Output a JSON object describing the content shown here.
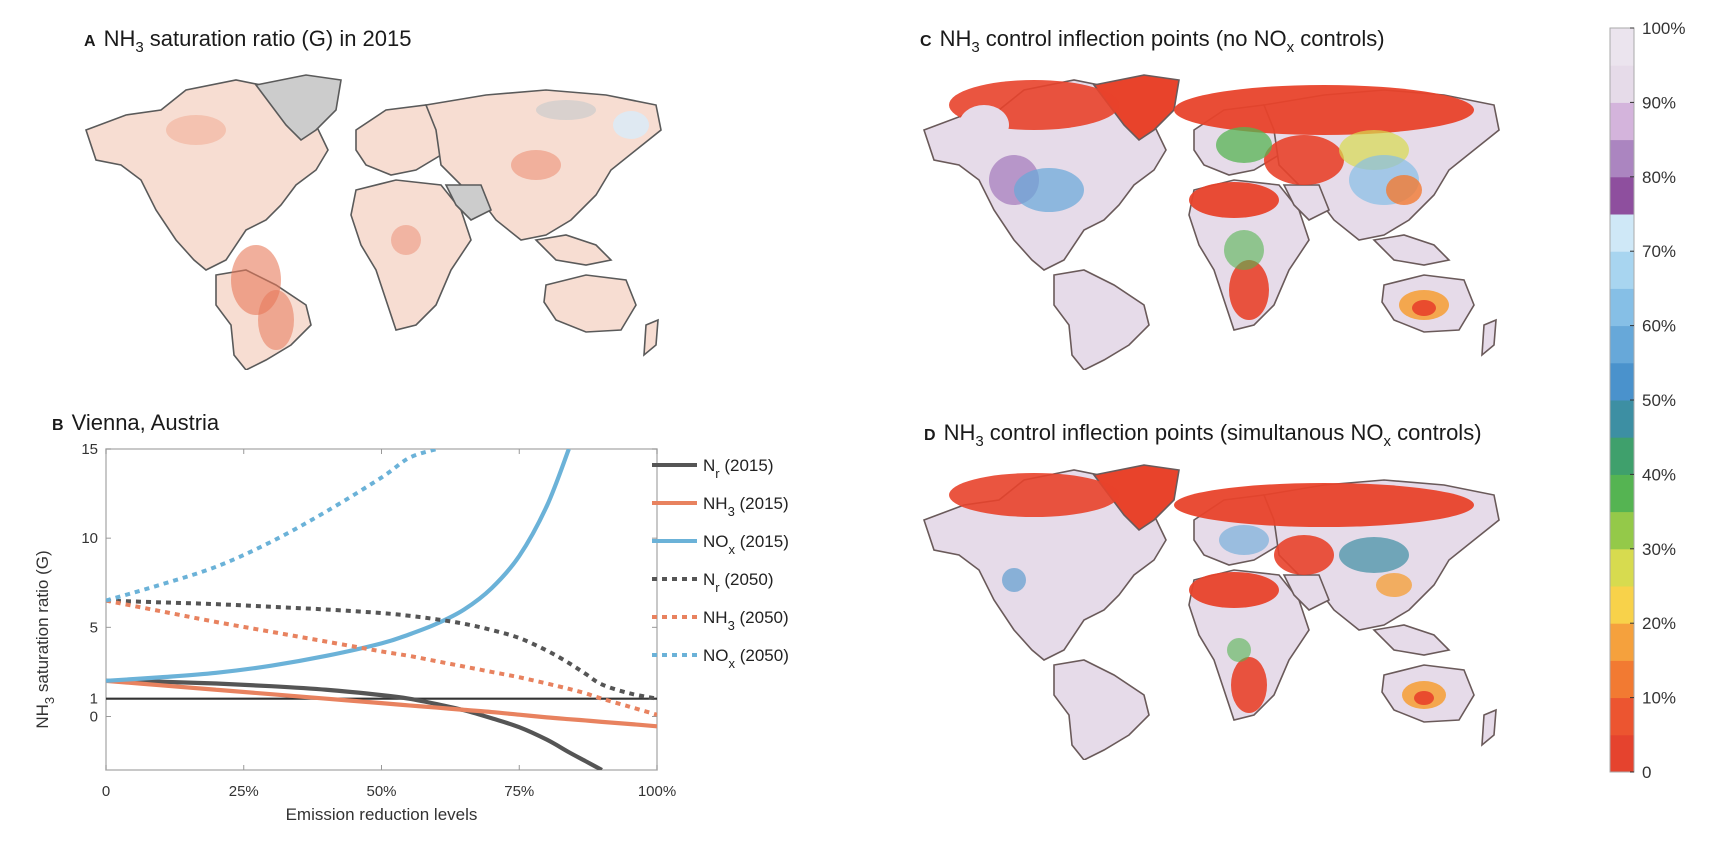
{
  "panels": {
    "a": {
      "letter": "A",
      "title_pre": "NH",
      "title_sub": "3",
      "title_post": " saturation ratio (G) in 2015"
    },
    "b": {
      "letter": "B",
      "title": "Vienna, Austria"
    },
    "c": {
      "letter": "C",
      "title_pre": "NH",
      "title_sub": "3",
      "title_mid": " control inflection points (no NO",
      "title_sub2": "x",
      "title_post": " controls)"
    },
    "d": {
      "letter": "D",
      "title_pre": "NH",
      "title_sub": "3",
      "title_mid": " control inflection points (simultanous NO",
      "title_sub2": "x",
      "title_post": " controls)"
    }
  },
  "maps": {
    "a": {
      "land_color": "#f7ddd2",
      "hot_color": "#e8795a",
      "cold_color": "#cccccc",
      "ice_color": "#dbeaf5",
      "border_color": "#5a5a5a"
    },
    "c": {
      "land_color": "#e6dbe9",
      "hot_color": "#e8432b",
      "border_color": "#6a5a5a"
    },
    "d": {
      "land_color": "#e6dbe9",
      "hot_color": "#e8432b",
      "border_color": "#6a5a5a"
    }
  },
  "colorbar": {
    "ticks": [
      "0",
      "10%",
      "20%",
      "30%",
      "40%",
      "50%",
      "60%",
      "70%",
      "80%",
      "90%",
      "100%"
    ],
    "bands": [
      "#e5432e",
      "#ec5530",
      "#f27a32",
      "#f5a13d",
      "#f8d24a",
      "#d7db4f",
      "#94c949",
      "#55b452",
      "#3fa06c",
      "#3d8fa3",
      "#4a92cc",
      "#67a8d9",
      "#86bfe6",
      "#a8d5f0",
      "#cfe8f7",
      "#8e4f9e",
      "#ab85c0",
      "#d4b4dc",
      "#e6dbe9",
      "#ebe4ee"
    ]
  },
  "chart_data": {
    "type": "line",
    "title": "Vienna, Austria",
    "xlabel": "Emission reduction levels",
    "ylabel_pre": "NH",
    "ylabel_sub": "3",
    "ylabel_post": " saturation ratio (G)",
    "xlim": [
      0,
      100
    ],
    "ylim": [
      -3,
      15
    ],
    "xticks": [
      0,
      25,
      50,
      75,
      100
    ],
    "xtick_labels": [
      "0",
      "25%",
      "50%",
      "75%",
      "100%"
    ],
    "yticks": [
      0,
      1,
      5,
      10,
      15
    ],
    "ytick_labels": [
      "0",
      "1",
      "5",
      "10",
      "15"
    ],
    "reference_line": 1,
    "legend_position": "right",
    "x": [
      0,
      10,
      20,
      30,
      40,
      50,
      55,
      60,
      65,
      70,
      75,
      80,
      84,
      87,
      90,
      95,
      100
    ],
    "series": [
      {
        "name": "Nr (2015)",
        "label_main": "N",
        "label_sub": "r",
        "label_year": " (2015)",
        "color": "#555555",
        "dash": false,
        "values": [
          2.0,
          1.95,
          1.85,
          1.7,
          1.5,
          1.2,
          1.0,
          0.7,
          0.35,
          -0.1,
          -0.6,
          -1.3,
          -2.0,
          -2.5,
          -3.0,
          null,
          null
        ]
      },
      {
        "name": "NH3 (2015)",
        "label_main": "NH",
        "label_sub": "3",
        "label_year": " (2015)",
        "color": "#e8825f",
        "dash": false,
        "values": [
          2.0,
          1.75,
          1.5,
          1.25,
          1.0,
          0.75,
          0.62,
          0.5,
          0.37,
          0.25,
          0.1,
          -0.05,
          -0.15,
          -0.22,
          -0.3,
          -0.42,
          -0.55
        ]
      },
      {
        "name": "NOx (2015)",
        "label_main": "NO",
        "label_sub": "x",
        "label_year": " (2015)",
        "color": "#6bb2d8",
        "dash": false,
        "values": [
          2.0,
          2.2,
          2.45,
          2.85,
          3.4,
          4.1,
          4.6,
          5.2,
          6.0,
          7.2,
          9.0,
          11.8,
          15.0,
          null,
          null,
          null,
          null
        ]
      },
      {
        "name": "Nr (2050)",
        "label_main": "N",
        "label_sub": "r",
        "label_year": " (2050)",
        "color": "#555555",
        "dash": true,
        "values": [
          6.5,
          6.4,
          6.3,
          6.15,
          6.0,
          5.8,
          5.65,
          5.45,
          5.2,
          4.85,
          4.4,
          3.7,
          3.0,
          2.4,
          1.8,
          1.3,
          1.0
        ]
      },
      {
        "name": "NH3 (2050)",
        "label_main": "NH",
        "label_sub": "3",
        "label_year": " (2050)",
        "color": "#e8825f",
        "dash": true,
        "values": [
          6.5,
          5.9,
          5.3,
          4.75,
          4.2,
          3.65,
          3.4,
          3.1,
          2.8,
          2.5,
          2.2,
          1.85,
          1.55,
          1.3,
          1.0,
          0.55,
          0.1
        ]
      },
      {
        "name": "NOx (2050)",
        "label_main": "NO",
        "label_sub": "x",
        "label_year": " (2050)",
        "color": "#6bb2d8",
        "dash": true,
        "values": [
          6.5,
          7.4,
          8.4,
          9.8,
          11.5,
          13.4,
          14.5,
          15.0,
          null,
          null,
          null,
          null,
          null,
          null,
          null,
          null,
          null
        ]
      }
    ]
  }
}
